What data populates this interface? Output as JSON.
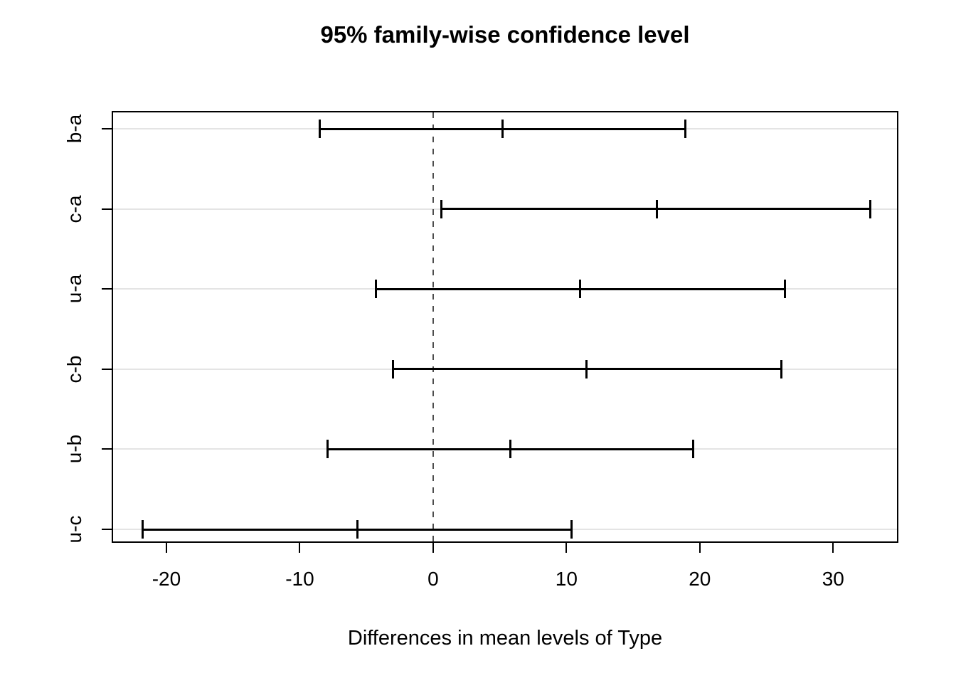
{
  "title": "95% family-wise confidence level",
  "xlabel": "Differences in mean levels of Type",
  "chart_data": {
    "type": "ci_interval",
    "orientation": "horizontal",
    "title": "95% family-wise confidence level",
    "xlabel": "Differences in mean levels of Type",
    "ylabel": "",
    "comparisons": [
      "b-a",
      "c-a",
      "u-a",
      "c-b",
      "u-b",
      "u-c"
    ],
    "series": [
      {
        "name": "b-a",
        "estimate": 5.2,
        "lower": -8.5,
        "upper": 18.9
      },
      {
        "name": "c-a",
        "estimate": 16.8,
        "lower": 0.6,
        "upper": 32.8
      },
      {
        "name": "u-a",
        "estimate": 11.0,
        "lower": -4.3,
        "upper": 26.4
      },
      {
        "name": "c-b",
        "estimate": 11.5,
        "lower": -3.0,
        "upper": 26.1
      },
      {
        "name": "u-b",
        "estimate": 5.8,
        "lower": -7.9,
        "upper": 19.5
      },
      {
        "name": "u-c",
        "estimate": -5.7,
        "lower": -21.8,
        "upper": 10.4
      }
    ],
    "x_ticks": [
      -20,
      -10,
      0,
      10,
      20,
      30
    ],
    "xlim": [
      -24,
      35
    ],
    "zero_line": {
      "x": 0,
      "style": "dashed"
    },
    "grid": "light horizontal line at each comparison row",
    "legend": "none",
    "colors": {
      "interval": "#000000",
      "grid": "#e4e4e4",
      "zero_line": "#4d4d4d",
      "text": "#000000",
      "background": "#ffffff"
    }
  }
}
